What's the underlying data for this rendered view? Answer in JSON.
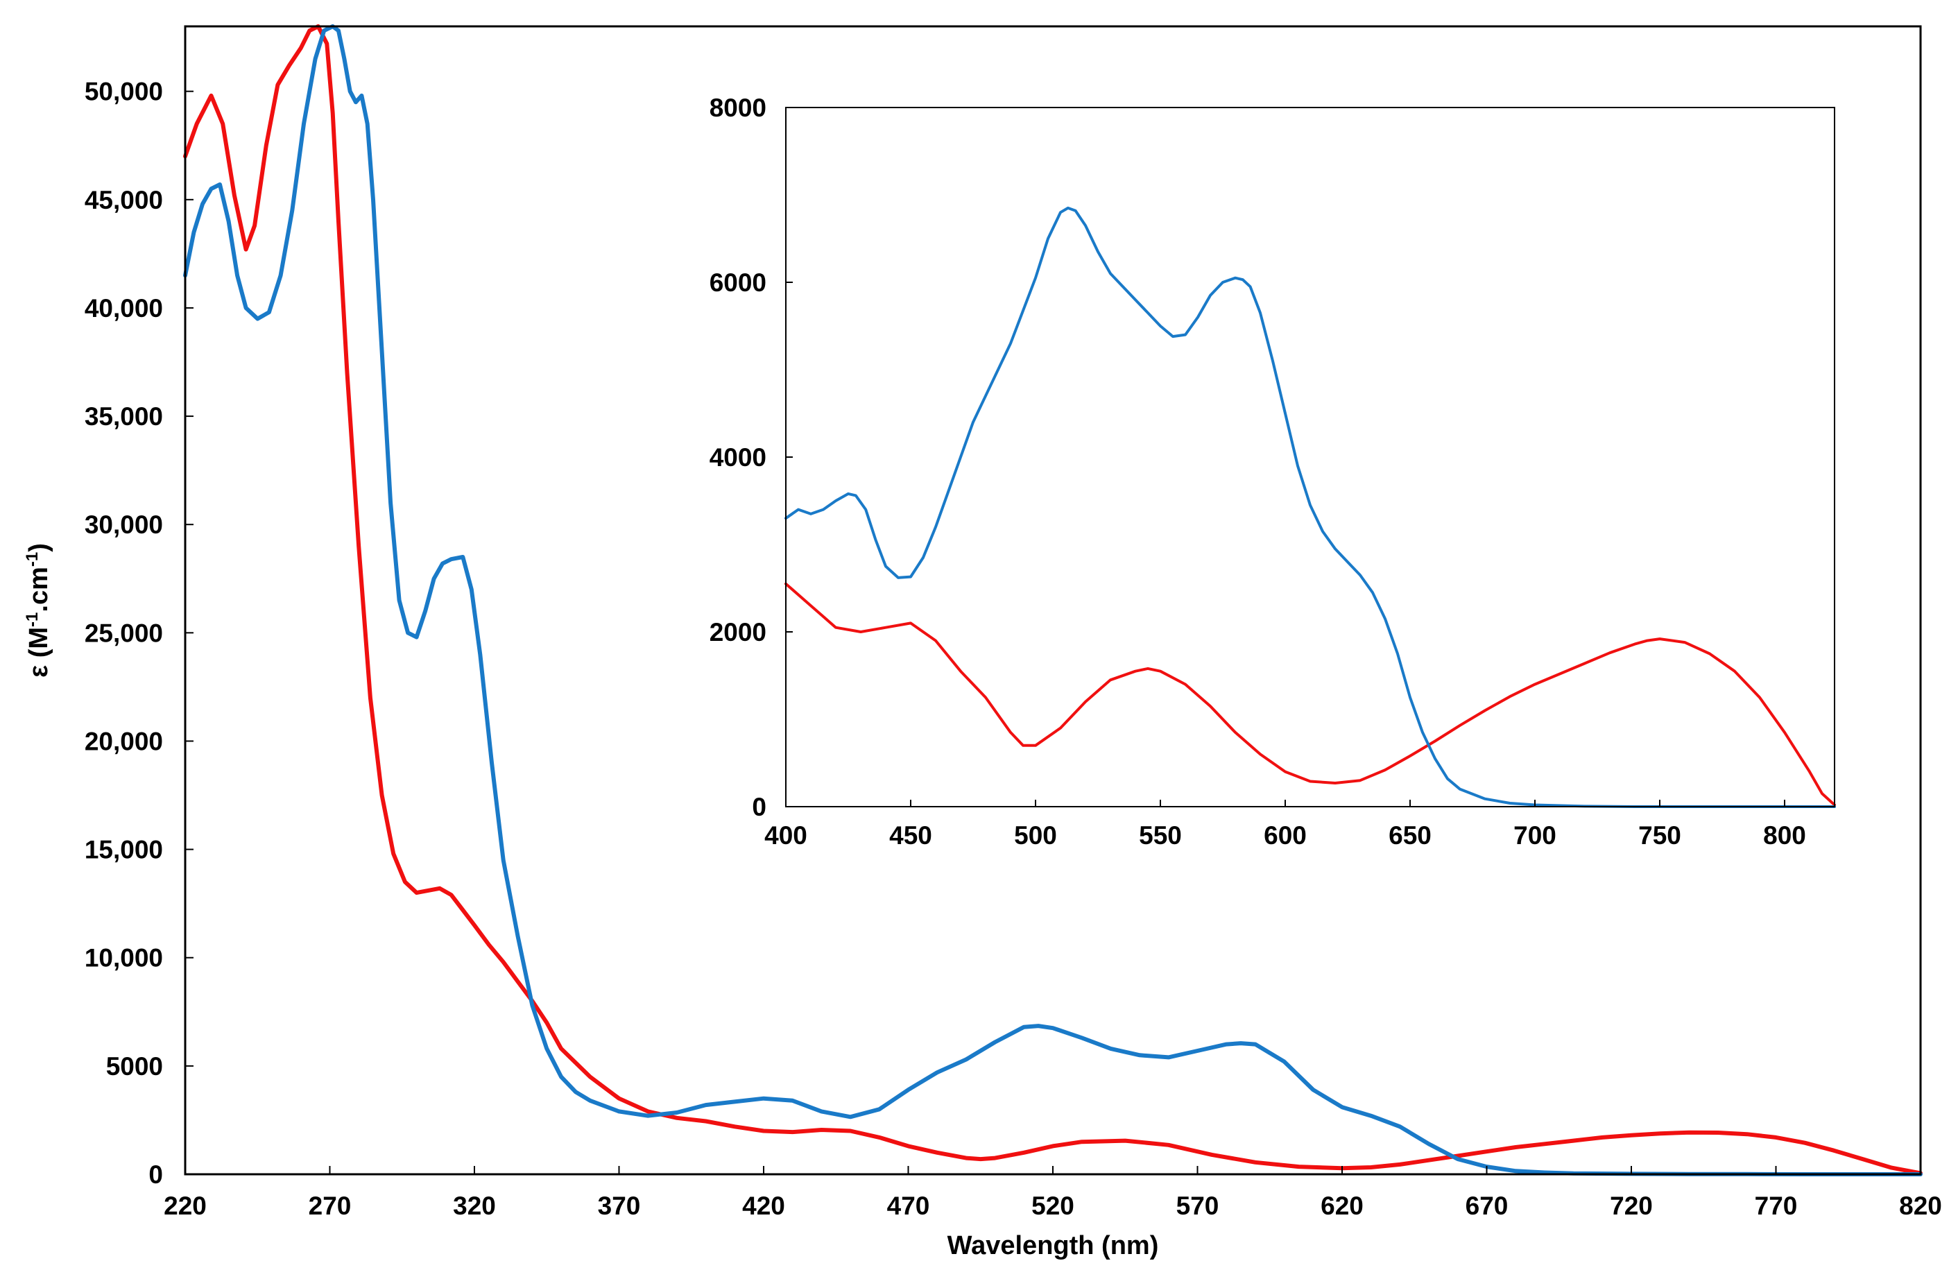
{
  "colors": {
    "red_series": "#f01010",
    "blue_series": "#1a7ac8",
    "axis": "#000000"
  },
  "chart_data": [
    {
      "type": "line",
      "xlabel": "Wavelength (nm)",
      "ylabel": "ε (M",
      "ylabel_sup1": "-1",
      "ylabel_mid": ".cm",
      "ylabel_sup2": "-1",
      "ylabel_end": ")",
      "xlim": [
        220,
        820
      ],
      "ylim": [
        0,
        53000
      ],
      "x_ticks": [
        220,
        270,
        320,
        370,
        420,
        470,
        520,
        570,
        620,
        670,
        720,
        770,
        820
      ],
      "x_tick_labels": [
        "220",
        "270",
        "320",
        "370",
        "420",
        "470",
        "520",
        "570",
        "620",
        "670",
        "720",
        "770",
        "820"
      ],
      "y_ticks": [
        0,
        5000,
        10000,
        15000,
        20000,
        25000,
        30000,
        35000,
        40000,
        45000,
        50000
      ],
      "y_tick_labels": [
        "0",
        "5000",
        "10,000",
        "15,000",
        "20,000",
        "25,000",
        "30,000",
        "35,000",
        "40,000",
        "45,000",
        "50,000"
      ],
      "grid": false,
      "series": [
        {
          "color": "#f01010",
          "x": [
            220,
            224,
            229,
            233,
            237,
            241,
            244,
            248,
            252,
            256,
            260,
            263,
            266,
            269,
            271,
            273,
            276,
            280,
            284,
            288,
            292,
            296,
            300,
            304,
            308,
            312,
            316,
            320,
            325,
            330,
            335,
            340,
            345,
            350,
            360,
            370,
            380,
            390,
            400,
            410,
            420,
            430,
            440,
            450,
            460,
            470,
            480,
            490,
            495,
            500,
            510,
            520,
            530,
            545,
            560,
            575,
            590,
            605,
            620,
            630,
            640,
            650,
            660,
            670,
            680,
            690,
            700,
            710,
            720,
            730,
            740,
            750,
            760,
            770,
            780,
            790,
            800,
            810,
            820
          ],
          "y": [
            47000,
            48500,
            49800,
            48500,
            45200,
            42700,
            43800,
            47500,
            50300,
            51200,
            52000,
            52800,
            53000,
            52200,
            49000,
            44000,
            37000,
            29000,
            22000,
            17500,
            14800,
            13500,
            13000,
            13100,
            13200,
            12900,
            12200,
            11500,
            10600,
            9800,
            8900,
            8000,
            7000,
            5800,
            4500,
            3500,
            2900,
            2600,
            2450,
            2200,
            2000,
            1950,
            2050,
            2000,
            1700,
            1300,
            1000,
            750,
            700,
            750,
            1000,
            1300,
            1500,
            1550,
            1350,
            900,
            550,
            350,
            280,
            320,
            450,
            650,
            850,
            1050,
            1250,
            1400,
            1550,
            1700,
            1800,
            1880,
            1930,
            1920,
            1850,
            1700,
            1450,
            1100,
            700,
            300,
            50
          ]
        },
        {
          "color": "#1a7ac8",
          "x": [
            220,
            223,
            226,
            229,
            232,
            235,
            238,
            241,
            245,
            249,
            253,
            257,
            261,
            265,
            268,
            271,
            273,
            275,
            277,
            279,
            281,
            283,
            285,
            288,
            291,
            294,
            297,
            300,
            303,
            306,
            309,
            312,
            316,
            319,
            322,
            326,
            330,
            335,
            340,
            345,
            350,
            355,
            360,
            370,
            380,
            390,
            400,
            410,
            420,
            430,
            440,
            450,
            460,
            470,
            480,
            490,
            500,
            510,
            515,
            520,
            530,
            540,
            550,
            560,
            570,
            580,
            585,
            590,
            600,
            610,
            620,
            630,
            640,
            650,
            660,
            670,
            680,
            690,
            700,
            720,
            740,
            760,
            780,
            800,
            820
          ],
          "y": [
            41500,
            43500,
            44800,
            45500,
            45700,
            44000,
            41500,
            40000,
            39500,
            39800,
            41500,
            44500,
            48500,
            51500,
            52800,
            53000,
            52800,
            51500,
            50000,
            49500,
            49800,
            48500,
            45000,
            38000,
            31000,
            26500,
            25000,
            24800,
            26000,
            27500,
            28200,
            28400,
            28500,
            27000,
            24000,
            19000,
            14500,
            11000,
            7800,
            5800,
            4500,
            3800,
            3400,
            2900,
            2700,
            2850,
            3200,
            3350,
            3500,
            3400,
            2900,
            2650,
            3000,
            3900,
            4700,
            5300,
            6100,
            6800,
            6850,
            6750,
            6300,
            5800,
            5500,
            5400,
            5700,
            6000,
            6050,
            6000,
            5200,
            3900,
            3100,
            2700,
            2200,
            1400,
            700,
            350,
            150,
            80,
            40,
            20,
            10,
            5,
            0,
            0,
            0
          ]
        }
      ]
    },
    {
      "type": "line",
      "xlim": [
        400,
        820
      ],
      "ylim": [
        0,
        8000
      ],
      "x_ticks": [
        400,
        450,
        500,
        550,
        600,
        650,
        700,
        750,
        800
      ],
      "x_tick_labels": [
        "400",
        "450",
        "500",
        "550",
        "600",
        "650",
        "700",
        "750",
        "800"
      ],
      "y_ticks": [
        0,
        2000,
        4000,
        6000,
        8000
      ],
      "y_tick_labels": [
        "0",
        "2000",
        "4000",
        "6000",
        "8000"
      ],
      "grid": false,
      "series": [
        {
          "color": "#f01010",
          "x": [
            400,
            410,
            420,
            430,
            440,
            450,
            460,
            470,
            480,
            490,
            495,
            500,
            510,
            520,
            530,
            540,
            545,
            550,
            560,
            570,
            580,
            590,
            600,
            610,
            620,
            630,
            640,
            650,
            660,
            670,
            680,
            690,
            700,
            710,
            720,
            730,
            740,
            745,
            750,
            760,
            770,
            780,
            790,
            800,
            810,
            815,
            820
          ],
          "y": [
            2550,
            2300,
            2050,
            2000,
            2050,
            2100,
            1900,
            1550,
            1250,
            850,
            700,
            700,
            900,
            1200,
            1450,
            1550,
            1580,
            1550,
            1400,
            1150,
            850,
            600,
            400,
            290,
            270,
            300,
            420,
            580,
            750,
            930,
            1100,
            1260,
            1400,
            1520,
            1640,
            1760,
            1860,
            1900,
            1920,
            1880,
            1750,
            1550,
            1250,
            850,
            400,
            150,
            20
          ]
        },
        {
          "color": "#1a7ac8",
          "x": [
            400,
            405,
            410,
            415,
            420,
            425,
            428,
            432,
            436,
            440,
            445,
            450,
            455,
            460,
            465,
            470,
            475,
            480,
            490,
            500,
            505,
            510,
            513,
            516,
            520,
            525,
            530,
            540,
            550,
            555,
            560,
            565,
            570,
            575,
            580,
            583,
            586,
            590,
            595,
            600,
            605,
            610,
            615,
            620,
            625,
            630,
            635,
            640,
            645,
            650,
            655,
            660,
            665,
            670,
            680,
            690,
            700,
            720,
            740,
            760,
            780,
            800,
            820
          ],
          "y": [
            3300,
            3400,
            3350,
            3400,
            3500,
            3580,
            3560,
            3400,
            3050,
            2750,
            2620,
            2630,
            2850,
            3200,
            3600,
            4000,
            4400,
            4700,
            5300,
            6050,
            6500,
            6800,
            6850,
            6820,
            6650,
            6350,
            6100,
            5800,
            5500,
            5380,
            5400,
            5600,
            5850,
            6000,
            6050,
            6030,
            5950,
            5650,
            5100,
            4500,
            3900,
            3450,
            3150,
            2950,
            2800,
            2650,
            2450,
            2150,
            1750,
            1250,
            850,
            550,
            320,
            200,
            90,
            40,
            20,
            5,
            0,
            0,
            0,
            0,
            0
          ]
        }
      ]
    }
  ]
}
